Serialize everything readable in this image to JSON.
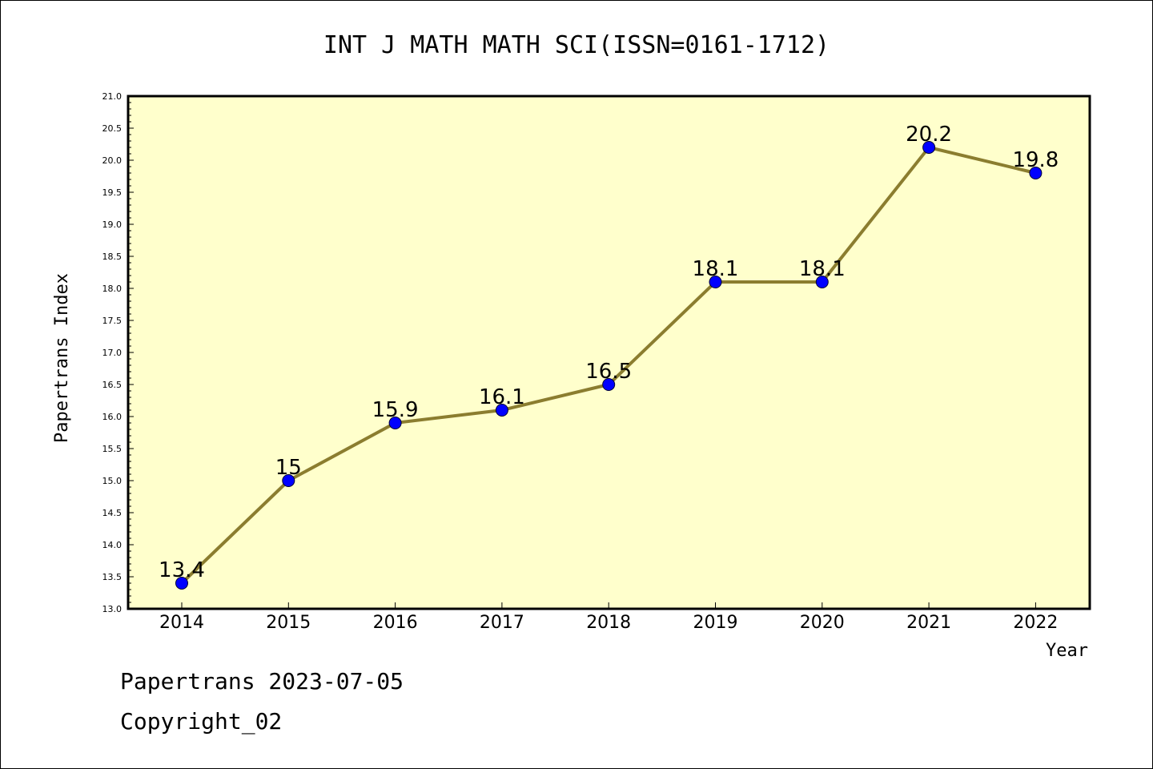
{
  "colors": {
    "plot_background": "#ffffcc",
    "line": "#8b7d2f",
    "marker": "#0000ff"
  },
  "chart_data": {
    "type": "line",
    "title": "INT J MATH MATH SCI(ISSN=0161-1712)",
    "xlabel": "Year",
    "ylabel": "Papertrans Index",
    "categories": [
      "2014",
      "2015",
      "2016",
      "2017",
      "2018",
      "2019",
      "2020",
      "2021",
      "2022"
    ],
    "values": [
      13.4,
      15,
      15.9,
      16.1,
      16.5,
      18.1,
      18.1,
      20.2,
      19.8
    ],
    "data_labels": [
      "13.4",
      "15",
      "15.9",
      "16.1",
      "16.5",
      "18.1",
      "18.1",
      "20.2",
      "19.8"
    ],
    "ylim": [
      13.0,
      21.0
    ],
    "yticks": [
      "13.0",
      "13.5",
      "14.0",
      "14.5",
      "15.0",
      "15.5",
      "16.0",
      "16.5",
      "17.0",
      "17.5",
      "18.0",
      "18.5",
      "19.0",
      "19.5",
      "20.0",
      "20.5",
      "21.0"
    ],
    "grid": false,
    "legend": "none"
  },
  "footer": {
    "line1": "Papertrans 2023-07-05",
    "line2": "Copyright_02"
  }
}
